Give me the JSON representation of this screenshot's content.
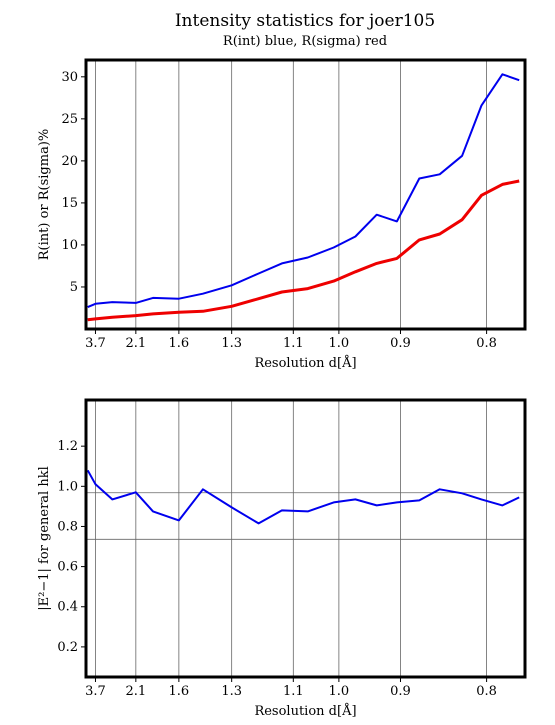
{
  "figure": {
    "title": "Intensity statistics for joer105",
    "subtitle": "R(int) blue, R(sigma) red"
  },
  "colors": {
    "blue": "#0000ee",
    "red": "#ee0000",
    "frame": "#000000",
    "grid": "#666666"
  },
  "chart_data": [
    {
      "type": "line",
      "xlabel": "Resolution d[Å]",
      "ylabel": "R(int) or R(sigma)%",
      "x_tick_labels": [
        "3.7",
        "2.1",
        "1.6",
        "1.3",
        "1.1",
        "1.0",
        "0.9",
        "0.8"
      ],
      "y_tick_labels": [
        "5",
        "10",
        "15",
        "20",
        "25",
        "30"
      ],
      "grid": "vertical",
      "ylim": [
        0,
        32
      ],
      "series": [
        {
          "name": "R(int)",
          "color": "blue",
          "x": [
            4.8,
            3.7,
            2.7,
            2.1,
            1.85,
            1.6,
            1.44,
            1.3,
            1.2,
            1.13,
            1.065,
            1.01,
            0.97,
            0.935,
            0.905,
            0.875,
            0.85,
            0.825,
            0.805,
            0.785,
            0.77
          ],
          "values": [
            2.6,
            3.0,
            3.2,
            3.1,
            3.7,
            3.6,
            4.2,
            5.2,
            6.6,
            7.8,
            8.5,
            9.7,
            11.0,
            13.6,
            12.8,
            17.9,
            18.4,
            20.6,
            26.6,
            30.3,
            29.6
          ]
        },
        {
          "name": "R(sigma)",
          "color": "red",
          "x": [
            4.8,
            3.7,
            2.7,
            2.1,
            1.85,
            1.6,
            1.44,
            1.3,
            1.2,
            1.13,
            1.065,
            1.01,
            0.97,
            0.935,
            0.905,
            0.875,
            0.85,
            0.825,
            0.805,
            0.785,
            0.77
          ],
          "values": [
            1.1,
            1.2,
            1.4,
            1.6,
            1.8,
            2.0,
            2.1,
            2.7,
            3.6,
            4.4,
            4.8,
            5.7,
            6.8,
            7.8,
            8.4,
            10.6,
            11.3,
            13.0,
            15.9,
            17.2,
            17.6
          ]
        }
      ]
    },
    {
      "type": "line",
      "xlabel": "Resolution d[Å]",
      "ylabel": "|E²−1| for general hkl",
      "x_tick_labels": [
        "3.7",
        "2.1",
        "1.6",
        "1.3",
        "1.1",
        "1.0",
        "0.9",
        "0.8"
      ],
      "y_tick_labels": [
        "0.2",
        "0.4",
        "0.6",
        "0.8",
        "1.0",
        "1.2"
      ],
      "grid": "vertical",
      "ylim": [
        0.05,
        1.43
      ],
      "reference_lines": [
        0.968,
        0.736
      ],
      "series": [
        {
          "name": "|E²−1|",
          "color": "blue",
          "x": [
            4.8,
            3.7,
            2.7,
            2.1,
            1.85,
            1.6,
            1.44,
            1.3,
            1.2,
            1.13,
            1.065,
            1.01,
            0.97,
            0.935,
            0.905,
            0.875,
            0.85,
            0.825,
            0.805,
            0.785,
            0.77
          ],
          "values": [
            1.08,
            1.01,
            0.935,
            0.97,
            0.875,
            0.83,
            0.985,
            0.895,
            0.815,
            0.88,
            0.875,
            0.92,
            0.935,
            0.905,
            0.92,
            0.93,
            0.985,
            0.965,
            0.935,
            0.905,
            0.945
          ]
        }
      ]
    }
  ]
}
